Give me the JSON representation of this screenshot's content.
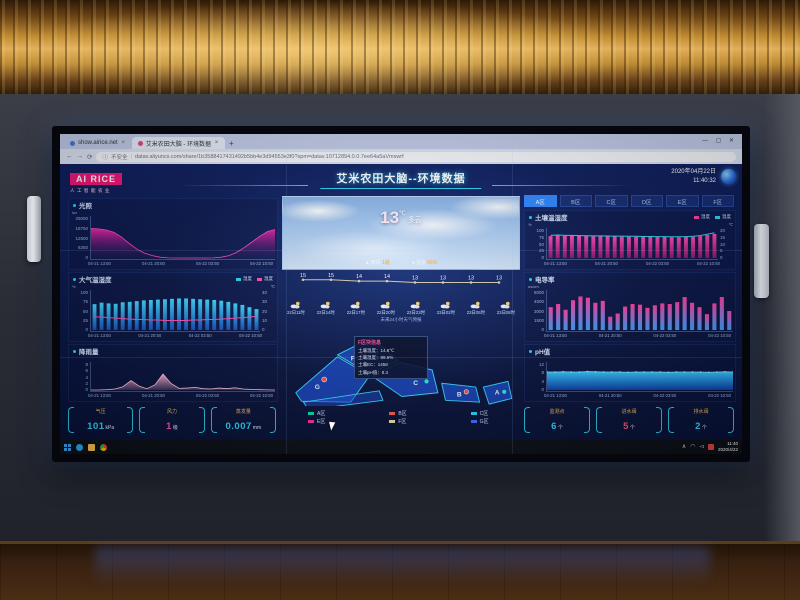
{
  "browser": {
    "tab_site": "show.airice.net",
    "tab_dash": "艾米农田大脑 - 环境数据",
    "tab_close": "×",
    "new_tab": "+",
    "controls": "—  ▢  ✕",
    "security": "不安全",
    "url": "datav.aliyuncs.com/share/1b3588417431492b5bb4e3d94553e3f0?spm=datav.10712894.0.0.7ee64a5aVmswrf"
  },
  "header": {
    "logo": "AI RICE",
    "logo_sub": "人工智能农业",
    "title": "艾米农田大脑--环境数据",
    "date": "2020年04月22日",
    "time": "11:40:32"
  },
  "zone_tabs": {
    "items": [
      "A区",
      "B区",
      "C区",
      "D区",
      "E区",
      "F区"
    ],
    "active_index": 0
  },
  "weather": {
    "temp": "13",
    "temp_unit": "℃",
    "condition": "多云",
    "wind_label": "西风",
    "wind_value": "1级",
    "humidity_label": "湿度",
    "humidity_value": "66%"
  },
  "chart_data": [
    {
      "type": "area",
      "title": "光照",
      "unit": "lux",
      "yticks": [
        "25000",
        "18750",
        "12500",
        "6250",
        "0"
      ],
      "x": [
        "04-21 13:50",
        "04-21 20:50",
        "04-22 03:50",
        "04-22 10:50"
      ],
      "ylim": [
        0,
        25000
      ],
      "series": [
        {
          "name": "光照",
          "type": "area",
          "spread": "edge",
          "color": "#f020a8",
          "color2": "rgba(80,20,120,0.06)",
          "stroke": "#ff49c0",
          "max": 25000,
          "values": [
            18500,
            18200,
            17500,
            16000,
            13000,
            9000,
            5500,
            3000,
            1500,
            500,
            100,
            0,
            0,
            0,
            0,
            0,
            100,
            500,
            1500,
            3500,
            6500,
            10000,
            13500,
            16500,
            17800
          ]
        }
      ]
    },
    {
      "type": "bar",
      "title": "大气温湿度",
      "unit_left": "%",
      "unit_right": "℃",
      "yticks": [
        "100",
        "75",
        "50",
        "25",
        "0"
      ],
      "yticks_right": [
        "40",
        "30",
        "20",
        "10",
        "0"
      ],
      "x": [
        "04-21 13:50",
        "04-21 20:50",
        "04-22 03:50",
        "04-22 10:50"
      ],
      "legend": [
        {
          "name": "湿度",
          "color": "#2fd3f5"
        },
        {
          "name": "温度",
          "color": "#ff4fae"
        }
      ],
      "series": [
        {
          "name": "湿度",
          "type": "bar",
          "color": "#3fd8ff",
          "color2": "#1550c0",
          "max": 100,
          "values": [
            68,
            72,
            70,
            69,
            73,
            74,
            76,
            78,
            79,
            80,
            81,
            82,
            83,
            83,
            82,
            81,
            80,
            79,
            77,
            74,
            70,
            66,
            60,
            55
          ]
        },
        {
          "name": "温度",
          "type": "line",
          "color": "#ff4fae",
          "max": 40,
          "values": [
            14,
            13.5,
            13,
            12.5,
            12,
            11.5,
            11,
            11,
            10.5,
            10.5,
            10,
            10,
            10,
            10,
            10.5,
            10.5,
            11,
            11,
            11.5,
            12,
            12.5,
            13,
            13.5,
            14.5
          ]
        }
      ]
    },
    {
      "type": "area",
      "title": "降雨量",
      "unit": "mm",
      "yticks": [
        "8",
        "6",
        "4",
        "2",
        "0"
      ],
      "x": [
        "04-21 13:50",
        "04-21 20:50",
        "04-22 03:50",
        "04-22 10:50"
      ],
      "series": [
        {
          "name": "降雨量",
          "type": "area",
          "spread": "edge",
          "color": "#f8a8d0",
          "color2": "rgba(248,168,208,0.18)",
          "stroke": "#ffc6e2",
          "max": 8,
          "values": [
            0,
            0,
            0.1,
            0.3,
            1.0,
            2.9,
            1.2,
            0.4,
            1.6,
            4.9,
            2.0,
            0.5,
            0.6,
            0.8,
            0.4,
            0.3,
            0.6,
            0.4,
            0.7,
            0.3,
            0.2,
            0.1,
            0.05,
            0
          ]
        }
      ]
    },
    {
      "type": "line",
      "title": "未来24小时天气预报",
      "times": [
        "22日11时",
        "22日14时",
        "22日17时",
        "22日20时",
        "22日23时",
        "23日02时",
        "23日05时",
        "23日08时"
      ],
      "series": [
        {
          "name": "气温",
          "type": "line",
          "color": "#d8c8a8",
          "dots": true,
          "max": 20,
          "point_labels": [
            "15",
            "15",
            "14",
            "14",
            "13",
            "13",
            "13",
            "13"
          ],
          "values": [
            15,
            15,
            14,
            14,
            13,
            13,
            13,
            13
          ]
        }
      ]
    },
    {
      "type": "bar",
      "title": "土壤温湿度",
      "unit_left": "%",
      "unit_right": "℃",
      "yticks": [
        "100",
        "75",
        "50",
        "25",
        "0"
      ],
      "yticks_right": [
        "20",
        "15",
        "10",
        "5",
        "0"
      ],
      "x": [
        "04-21 13:50",
        "04-21 20:50",
        "04-22 03:50",
        "04-22 10:50"
      ],
      "legend": [
        {
          "name": "湿度",
          "color": "#ff3fa4"
        },
        {
          "name": "温度",
          "color": "#2fd3f5"
        }
      ],
      "series": [
        {
          "name": "湿度",
          "type": "bar",
          "color": "#ff49b0",
          "color2": "#8f1470",
          "max": 100,
          "values": [
            78,
            80,
            79,
            80,
            79,
            79,
            78,
            78,
            77,
            77,
            76,
            76,
            76,
            75,
            75,
            75,
            75,
            74,
            74,
            75,
            76,
            78,
            82,
            86
          ]
        },
        {
          "name": "温度",
          "type": "line",
          "color": "#2fd3f5",
          "max": 20,
          "values": [
            16.2,
            16.4,
            16.2,
            16.2,
            16.0,
            15.9,
            15.8,
            15.8,
            15.7,
            15.6,
            15.6,
            15.5,
            15.5,
            15.4,
            15.4,
            15.3,
            15.3,
            15.2,
            15.2,
            15.3,
            15.5,
            16.0,
            17.0,
            18.0
          ]
        }
      ]
    },
    {
      "type": "bar",
      "title": "电导率",
      "unit": "us/cm",
      "yticks": [
        "6000",
        "4500",
        "3000",
        "1500",
        "0"
      ],
      "x": [
        "04-21 13:50",
        "04-21 20:50",
        "04-22 03:50",
        "04-22 10:50"
      ],
      "series": [
        {
          "name": "电导率",
          "type": "bar",
          "color": "#ff3fa4",
          "color2": "#35a0ff",
          "max": 6000,
          "values": [
            3600,
            4100,
            3200,
            4700,
            5300,
            5100,
            4300,
            4600,
            2100,
            2600,
            3700,
            4100,
            4000,
            3500,
            3900,
            4200,
            4100,
            4400,
            5200,
            4300,
            3600,
            2500,
            4200,
            5200,
            3000
          ]
        }
      ]
    },
    {
      "type": "area",
      "title": "pH值",
      "yticks": [
        "12",
        "8",
        "4",
        "0"
      ],
      "x": [
        "04-21 13:50",
        "04-21 20:50",
        "04-22 03:50",
        "04-22 10:50"
      ],
      "series": [
        {
          "name": "pH",
          "type": "area",
          "spread": "edge",
          "color": "#35c8ff",
          "color2": "#0a3fa8",
          "stroke": "#7fe4ff",
          "dots": true,
          "max": 12,
          "values": [
            8.3,
            8.3,
            8.4,
            8.3,
            8.3,
            8.5,
            8.4,
            8.3,
            8.3,
            8.3,
            8.2,
            8.3,
            8.3,
            8.3,
            8.3,
            8.2,
            8.3,
            8.3,
            8.3,
            8.3,
            8.2,
            8.3,
            8.4,
            8.3
          ]
        }
      ]
    }
  ],
  "map": {
    "labels": {
      "a": "A",
      "b": "B",
      "c": "C",
      "f": "F",
      "g": "G"
    },
    "tooltip": {
      "title": "F区块信息",
      "rows": [
        "土壤温度：14.8℃",
        "土壤湿度：89.6%",
        "土壤EC：1458",
        "土壤pH值：8.3"
      ]
    },
    "legend": [
      {
        "name": "A区",
        "color": "#00e0a8"
      },
      {
        "name": "B区",
        "color": "#ff5a4e"
      },
      {
        "name": "C区",
        "color": "#2fd3f5"
      },
      {
        "name": "E区",
        "color": "#ff2da0"
      },
      {
        "name": "F区",
        "color": "#f0e0a8"
      },
      {
        "name": "G区",
        "color": "#3f6cff"
      }
    ]
  },
  "stats_left": {
    "items": [
      {
        "label": "气压",
        "value": "101",
        "unit": "kPa",
        "color": "#2fd3f5"
      },
      {
        "label": "风力",
        "value": "1",
        "unit": "级",
        "color": "#ff4fae"
      },
      {
        "label": "蒸发量",
        "value": "0.007",
        "unit": "mm",
        "color": "#2fd3f5"
      }
    ]
  },
  "stats_right": {
    "items": [
      {
        "label": "监测点",
        "value": "6",
        "unit": "个",
        "color": "#2fd3f5"
      },
      {
        "label": "进水阀",
        "value": "5",
        "unit": "个",
        "color": "#ff4f6e"
      },
      {
        "label": "排水阀",
        "value": "2",
        "unit": "个",
        "color": "#2fd3f5"
      }
    ]
  },
  "taskbar": {
    "time": "11:40",
    "date": "2020/4/22"
  }
}
